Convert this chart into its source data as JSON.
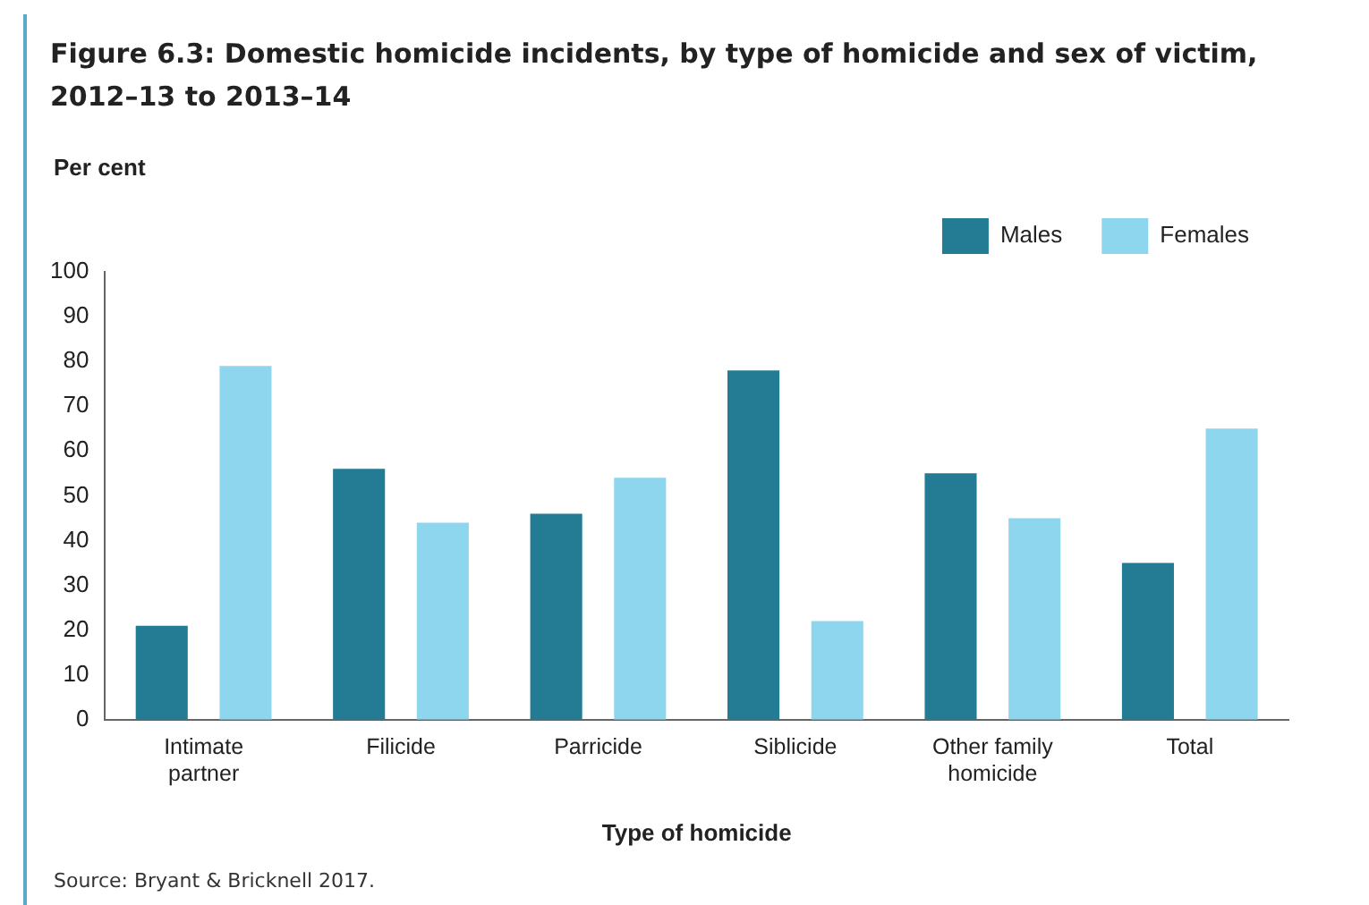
{
  "chart_data": {
    "type": "bar",
    "title": "Figure 6.3: Domestic homicide incidents, by type of homicide and sex of victim, 2012–13 to 2013–14",
    "xlabel": "Type of homicide",
    "ylabel": "Per cent",
    "categories": [
      "Intimate partner",
      "Filicide",
      "Parricide",
      "Siblicide",
      "Other family homicide",
      "Total"
    ],
    "series": [
      {
        "name": "Males",
        "color": "#237b94",
        "values": [
          21,
          56,
          46,
          78,
          55,
          35
        ]
      },
      {
        "name": "Females",
        "color": "#8ed6ee",
        "values": [
          79,
          44,
          54,
          22,
          45,
          65
        ]
      }
    ],
    "ylim": [
      0,
      100
    ],
    "yticks": [
      0,
      10,
      20,
      30,
      40,
      50,
      60,
      70,
      80,
      90,
      100
    ],
    "grid": false,
    "legend": "top right",
    "annotations": [
      "Source: Bryant & Bricknell 2017."
    ]
  }
}
